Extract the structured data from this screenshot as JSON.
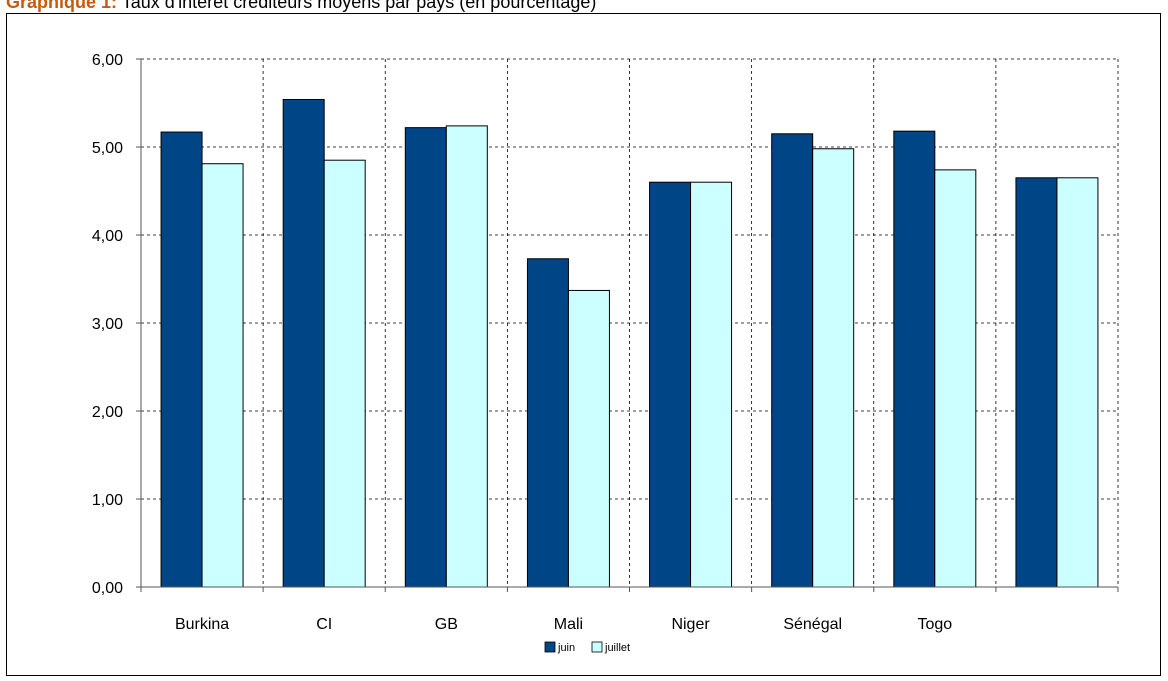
{
  "header": {
    "lead": "Graphique 1:",
    "rest": " Taux d'intérêt créditeurs moyens par pays (en pourcentage)"
  },
  "colors": {
    "juin": "#004586",
    "juillet": "#ccffff"
  },
  "chart_data": {
    "type": "bar",
    "title": "",
    "categories": [
      "Burkina",
      "CI",
      "GB",
      "Mali",
      "Niger",
      "Sénégal",
      "Togo",
      ""
    ],
    "series": [
      {
        "name": "juin",
        "values": [
          5.17,
          5.54,
          5.22,
          3.73,
          4.6,
          5.15,
          5.18,
          4.65
        ]
      },
      {
        "name": "juillet",
        "values": [
          4.81,
          4.85,
          5.24,
          3.37,
          4.6,
          4.98,
          4.74,
          4.65
        ]
      }
    ],
    "y_tick_labels": [
      "0,00",
      "1,00",
      "2,00",
      "3,00",
      "4,00",
      "5,00",
      "6,00"
    ],
    "ylim": [
      0,
      6
    ],
    "grid": true,
    "legend_position": "bottom"
  }
}
